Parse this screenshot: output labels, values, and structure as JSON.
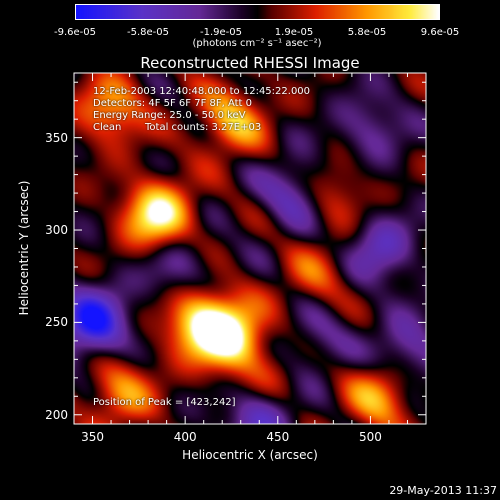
{
  "colorbar": {
    "ticks": [
      "-9.6e-05",
      "-5.8e-05",
      "-1.9e-05",
      "1.9e-05",
      "5.8e-05",
      "9.6e-05"
    ],
    "units": "(photons cm⁻² s⁻¹ asec⁻²)"
  },
  "chart_data": {
    "type": "heatmap",
    "title": "Reconstructed RHESSI Image",
    "xlabel": "Heliocentric X (arcsec)",
    "ylabel": "Heliocentric Y (arcsec)",
    "xlim": [
      340,
      530
    ],
    "ylim": [
      195,
      385
    ],
    "xticks": [
      350,
      400,
      450,
      500
    ],
    "yticks": [
      200,
      250,
      300,
      350
    ],
    "zlim": [
      -9.6e-05,
      9.6e-05
    ],
    "colormap": "RHESSI rainbow-heat (blue-purple-black-red-yellow-white)",
    "sources": [
      {
        "x": 385,
        "y": 308,
        "value": 9.6e-05
      },
      {
        "x": 408,
        "y": 250,
        "value": 8.5e-05
      },
      {
        "x": 425,
        "y": 242,
        "value": 9e-05
      },
      {
        "x": 360,
        "y": 365,
        "value": 6e-05
      },
      {
        "x": 425,
        "y": 360,
        "value": 6.5e-05
      },
      {
        "x": 505,
        "y": 210,
        "value": 6e-05
      },
      {
        "x": 480,
        "y": 320,
        "value": 4e-05
      },
      {
        "x": 365,
        "y": 212,
        "value": 5.5e-05
      },
      {
        "x": 470,
        "y": 275,
        "value": 3.5e-05
      },
      {
        "x": 445,
        "y": 215,
        "value": 3e-05
      },
      {
        "x": 350,
        "y": 250,
        "value": -9e-05
      },
      {
        "x": 440,
        "y": 200,
        "value": -6e-05
      },
      {
        "x": 460,
        "y": 320,
        "value": -5e-05
      },
      {
        "x": 505,
        "y": 290,
        "value": -5e-05
      },
      {
        "x": 520,
        "y": 235,
        "value": -4.5e-05
      },
      {
        "x": 500,
        "y": 355,
        "value": -3.5e-05
      },
      {
        "x": 395,
        "y": 280,
        "value": -3.5e-05
      },
      {
        "x": 470,
        "y": 240,
        "value": -3e-05
      }
    ],
    "annotations": {
      "time_range": "12-Feb-2003 12:40:48.000 to 12:45:22.000",
      "detectors": "Detectors: 4F 5F 6F 7F 8F, Att 0",
      "energy_range": "Energy Range: 25.0 - 50.0 keV",
      "method": "Clean",
      "total_counts": "Total counts: 3.27E+03",
      "peak": "Position of Peak = [423,242]"
    }
  },
  "footer": {
    "date": "29-May-2013 11:37"
  },
  "colors": {
    "background": "#000000",
    "text": "#ffffff"
  }
}
